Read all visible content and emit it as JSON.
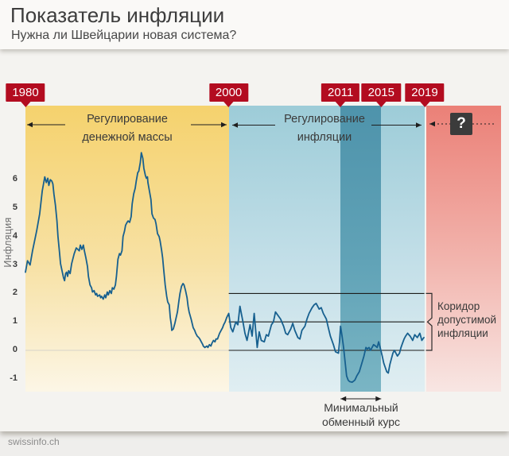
{
  "header": {
    "title": "Показатель инфляции",
    "subtitle": "Нужна ли Швейцарии новая система?"
  },
  "timeline": {
    "badges": [
      {
        "label": "1980",
        "year": 1980
      },
      {
        "label": "2000",
        "year": 2000
      },
      {
        "label": "2011",
        "year": 2011
      },
      {
        "label": "2015",
        "year": 2015
      },
      {
        "label": "2019",
        "year": 2019
      }
    ]
  },
  "colors": {
    "badge_red": "#b30c20",
    "line_blue": "#17608f",
    "rule_black": "#1d1d1b",
    "faint_zero_line": "#d6d3c9",
    "question_box": "#3b3b3b",
    "era_money_supply": {
      "top": "#f5d26d",
      "mid": "#f7e1a4",
      "bottom": "#fcf6e6"
    },
    "era_inflation": {
      "top": "#9dccd8",
      "mid": "#c3dfe8",
      "bottom": "#e0eef2"
    },
    "band_min_rate": {
      "top": "#4e93ab",
      "mid": "#61a3b7",
      "bottom": "#7ab5c4"
    },
    "era_future": {
      "top": "#eb8077",
      "mid": "#f2b5ae",
      "bottom": "#f8e6e3"
    }
  },
  "footer": {
    "source": "swissinfo.ch"
  },
  "chart_data": {
    "type": "line",
    "title": "Показатель инфляции",
    "ylabel": "Инфляция",
    "x_range": [
      1980,
      2019.25
    ],
    "ylim": [
      -1.5,
      7.3
    ],
    "yticks": [
      6,
      5,
      4,
      3,
      2,
      1,
      0,
      -1
    ],
    "grid": false,
    "corridor_lines_at": [
      2,
      1,
      0
    ],
    "eras": [
      {
        "label_line1": "Регулирование",
        "label_line2": "денежной массы",
        "start": 1980,
        "end": 2000
      },
      {
        "label_line1": "Регулирование",
        "label_line2": "инфляции",
        "start": 2000,
        "end": 2019.25
      },
      {
        "label": "?",
        "start": 2019.4,
        "end": null
      }
    ],
    "band": {
      "label_line1": "Минимальный",
      "label_line2": "обменный курс",
      "start": 2011,
      "end": 2015
    },
    "corridor_label": {
      "line1": "Коридор",
      "line2": "допустимой",
      "line3": "инфляции",
      "from": 0,
      "to": 2
    },
    "series": [
      {
        "name": "Инфляция",
        "points": [
          [
            1980.0,
            2.75
          ],
          [
            1980.2,
            3.15
          ],
          [
            1980.45,
            3.0
          ],
          [
            1980.7,
            3.5
          ],
          [
            1981.1,
            4.2
          ],
          [
            1981.4,
            4.8
          ],
          [
            1981.65,
            5.6
          ],
          [
            1981.9,
            6.1
          ],
          [
            1982.05,
            5.9
          ],
          [
            1982.2,
            6.05
          ],
          [
            1982.3,
            5.8
          ],
          [
            1982.45,
            6.0
          ],
          [
            1982.6,
            5.95
          ],
          [
            1982.7,
            5.85
          ],
          [
            1982.8,
            5.5
          ],
          [
            1982.95,
            5.1
          ],
          [
            1983.1,
            4.55
          ],
          [
            1983.2,
            4.0
          ],
          [
            1983.35,
            3.45
          ],
          [
            1983.45,
            3.05
          ],
          [
            1983.6,
            2.8
          ],
          [
            1983.75,
            2.55
          ],
          [
            1983.85,
            2.45
          ],
          [
            1983.95,
            2.7
          ],
          [
            1984.05,
            2.75
          ],
          [
            1984.15,
            2.6
          ],
          [
            1984.25,
            2.8
          ],
          [
            1984.4,
            2.7
          ],
          [
            1984.55,
            3.05
          ],
          [
            1984.8,
            3.4
          ],
          [
            1985.0,
            3.6
          ],
          [
            1985.3,
            3.5
          ],
          [
            1985.4,
            3.7
          ],
          [
            1985.55,
            3.55
          ],
          [
            1985.7,
            3.7
          ],
          [
            1985.8,
            3.5
          ],
          [
            1985.95,
            3.25
          ],
          [
            1986.1,
            2.95
          ],
          [
            1986.2,
            2.6
          ],
          [
            1986.35,
            2.3
          ],
          [
            1986.5,
            2.2
          ],
          [
            1986.6,
            2.05
          ],
          [
            1986.75,
            2.1
          ],
          [
            1986.9,
            1.95
          ],
          [
            1987.0,
            2.0
          ],
          [
            1987.1,
            1.9
          ],
          [
            1987.3,
            1.95
          ],
          [
            1987.4,
            1.85
          ],
          [
            1987.5,
            1.9
          ],
          [
            1987.65,
            1.8
          ],
          [
            1987.8,
            1.95
          ],
          [
            1987.9,
            1.85
          ],
          [
            1988.05,
            2.05
          ],
          [
            1988.15,
            1.95
          ],
          [
            1988.3,
            2.1
          ],
          [
            1988.45,
            2.0
          ],
          [
            1988.55,
            2.2
          ],
          [
            1988.7,
            2.15
          ],
          [
            1988.85,
            2.3
          ],
          [
            1988.95,
            2.6
          ],
          [
            1989.1,
            3.2
          ],
          [
            1989.25,
            3.4
          ],
          [
            1989.35,
            3.35
          ],
          [
            1989.5,
            3.5
          ],
          [
            1989.6,
            4.0
          ],
          [
            1989.75,
            4.2
          ],
          [
            1989.85,
            4.4
          ],
          [
            1990.0,
            4.5
          ],
          [
            1990.1,
            4.55
          ],
          [
            1990.25,
            4.5
          ],
          [
            1990.4,
            4.7
          ],
          [
            1990.5,
            5.15
          ],
          [
            1990.65,
            5.5
          ],
          [
            1990.8,
            5.7
          ],
          [
            1990.9,
            5.95
          ],
          [
            1991.05,
            6.25
          ],
          [
            1991.15,
            6.3
          ],
          [
            1991.3,
            6.6
          ],
          [
            1991.4,
            6.95
          ],
          [
            1991.55,
            6.75
          ],
          [
            1991.65,
            6.4
          ],
          [
            1991.8,
            6.15
          ],
          [
            1991.9,
            6.05
          ],
          [
            1992.0,
            6.1
          ],
          [
            1992.05,
            5.9
          ],
          [
            1992.2,
            5.6
          ],
          [
            1992.35,
            5.3
          ],
          [
            1992.45,
            4.8
          ],
          [
            1992.6,
            4.65
          ],
          [
            1992.75,
            4.6
          ],
          [
            1992.85,
            4.45
          ],
          [
            1993.0,
            4.1
          ],
          [
            1993.15,
            4.0
          ],
          [
            1993.25,
            3.85
          ],
          [
            1993.4,
            3.5
          ],
          [
            1993.5,
            3.25
          ],
          [
            1993.6,
            2.85
          ],
          [
            1993.75,
            2.3
          ],
          [
            1993.9,
            1.9
          ],
          [
            1994.0,
            1.7
          ],
          [
            1994.15,
            1.6
          ],
          [
            1994.25,
            1.15
          ],
          [
            1994.35,
            0.9
          ],
          [
            1994.4,
            0.7
          ],
          [
            1994.55,
            0.75
          ],
          [
            1994.7,
            0.95
          ],
          [
            1994.8,
            1.1
          ],
          [
            1994.95,
            1.35
          ],
          [
            1995.1,
            1.75
          ],
          [
            1995.2,
            2.0
          ],
          [
            1995.35,
            2.25
          ],
          [
            1995.5,
            2.35
          ],
          [
            1995.6,
            2.3
          ],
          [
            1995.75,
            2.1
          ],
          [
            1995.9,
            1.85
          ],
          [
            1996.0,
            1.55
          ],
          [
            1996.1,
            1.35
          ],
          [
            1996.3,
            1.1
          ],
          [
            1996.4,
            0.95
          ],
          [
            1996.5,
            0.8
          ],
          [
            1996.65,
            0.7
          ],
          [
            1996.75,
            0.6
          ],
          [
            1996.9,
            0.5
          ],
          [
            1997.05,
            0.45
          ],
          [
            1997.15,
            0.4
          ],
          [
            1997.3,
            0.3
          ],
          [
            1997.45,
            0.2
          ],
          [
            1997.5,
            0.15
          ],
          [
            1997.65,
            0.1
          ],
          [
            1997.85,
            0.15
          ],
          [
            1997.95,
            0.1
          ],
          [
            1998.1,
            0.2
          ],
          [
            1998.25,
            0.15
          ],
          [
            1998.35,
            0.25
          ],
          [
            1998.5,
            0.35
          ],
          [
            1998.65,
            0.3
          ],
          [
            1998.75,
            0.4
          ],
          [
            1998.9,
            0.4
          ],
          [
            1999.0,
            0.5
          ],
          [
            1999.1,
            0.6
          ],
          [
            1999.25,
            0.7
          ],
          [
            1999.4,
            0.8
          ],
          [
            1999.5,
            0.9
          ],
          [
            1999.65,
            1.0
          ],
          [
            1999.8,
            1.15
          ],
          [
            2000.0,
            1.3
          ],
          [
            2000.2,
            0.8
          ],
          [
            2000.4,
            0.65
          ],
          [
            2000.7,
            1.0
          ],
          [
            2000.9,
            0.9
          ],
          [
            2001.1,
            1.55
          ],
          [
            2001.4,
            1.0
          ],
          [
            2001.6,
            0.6
          ],
          [
            2001.8,
            0.35
          ],
          [
            2002.1,
            0.9
          ],
          [
            2002.3,
            0.5
          ],
          [
            2002.5,
            1.3
          ],
          [
            2002.8,
            0.1
          ],
          [
            2003.0,
            0.65
          ],
          [
            2003.2,
            0.35
          ],
          [
            2003.5,
            0.3
          ],
          [
            2003.7,
            0.55
          ],
          [
            2003.9,
            0.5
          ],
          [
            2004.2,
            0.9
          ],
          [
            2004.4,
            1.0
          ],
          [
            2004.6,
            1.35
          ],
          [
            2004.9,
            1.2
          ],
          [
            2005.1,
            1.1
          ],
          [
            2005.4,
            0.85
          ],
          [
            2005.6,
            0.6
          ],
          [
            2005.8,
            0.55
          ],
          [
            2006.1,
            0.75
          ],
          [
            2006.3,
            0.95
          ],
          [
            2006.5,
            0.7
          ],
          [
            2006.8,
            0.45
          ],
          [
            2007.0,
            0.4
          ],
          [
            2007.2,
            0.7
          ],
          [
            2007.5,
            0.85
          ],
          [
            2007.7,
            1.1
          ],
          [
            2007.9,
            1.3
          ],
          [
            2008.2,
            1.5
          ],
          [
            2008.4,
            1.6
          ],
          [
            2008.6,
            1.65
          ],
          [
            2008.9,
            1.45
          ],
          [
            2009.1,
            1.5
          ],
          [
            2009.3,
            1.3
          ],
          [
            2009.6,
            1.1
          ],
          [
            2009.8,
            0.8
          ],
          [
            2010.0,
            0.5
          ],
          [
            2010.3,
            0.2
          ],
          [
            2010.5,
            -0.05
          ],
          [
            2010.8,
            -0.1
          ],
          [
            2010.9,
            0.3
          ],
          [
            2011.0,
            0.85
          ],
          [
            2011.15,
            0.5
          ],
          [
            2011.3,
            0.1
          ],
          [
            2011.45,
            -0.4
          ],
          [
            2011.6,
            -0.9
          ],
          [
            2011.75,
            -1.05
          ],
          [
            2011.9,
            -1.1
          ],
          [
            2012.15,
            -1.12
          ],
          [
            2012.4,
            -1.05
          ],
          [
            2012.6,
            -0.9
          ],
          [
            2012.85,
            -0.75
          ],
          [
            2013.1,
            -0.45
          ],
          [
            2013.3,
            -0.2
          ],
          [
            2013.5,
            0.1
          ],
          [
            2013.65,
            0.05
          ],
          [
            2013.8,
            0.1
          ],
          [
            2013.95,
            0.0
          ],
          [
            2014.1,
            0.1
          ],
          [
            2014.25,
            0.2
          ],
          [
            2014.45,
            0.15
          ],
          [
            2014.6,
            0.1
          ],
          [
            2014.75,
            0.3
          ],
          [
            2014.9,
            0.1
          ],
          [
            2015.1,
            -0.2
          ],
          [
            2015.25,
            -0.45
          ],
          [
            2015.4,
            -0.6
          ],
          [
            2015.55,
            -0.75
          ],
          [
            2015.7,
            -0.8
          ],
          [
            2015.85,
            -0.5
          ],
          [
            2016.0,
            -0.3
          ],
          [
            2016.15,
            -0.1
          ],
          [
            2016.3,
            0.0
          ],
          [
            2016.45,
            -0.1
          ],
          [
            2016.6,
            -0.2
          ],
          [
            2016.8,
            -0.1
          ],
          [
            2016.95,
            0.1
          ],
          [
            2017.1,
            0.25
          ],
          [
            2017.25,
            0.4
          ],
          [
            2017.4,
            0.5
          ],
          [
            2017.6,
            0.6
          ],
          [
            2017.85,
            0.5
          ],
          [
            2018.1,
            0.35
          ],
          [
            2018.3,
            0.55
          ],
          [
            2018.55,
            0.45
          ],
          [
            2018.8,
            0.6
          ],
          [
            2019.0,
            0.35
          ],
          [
            2019.2,
            0.45
          ]
        ]
      }
    ]
  }
}
